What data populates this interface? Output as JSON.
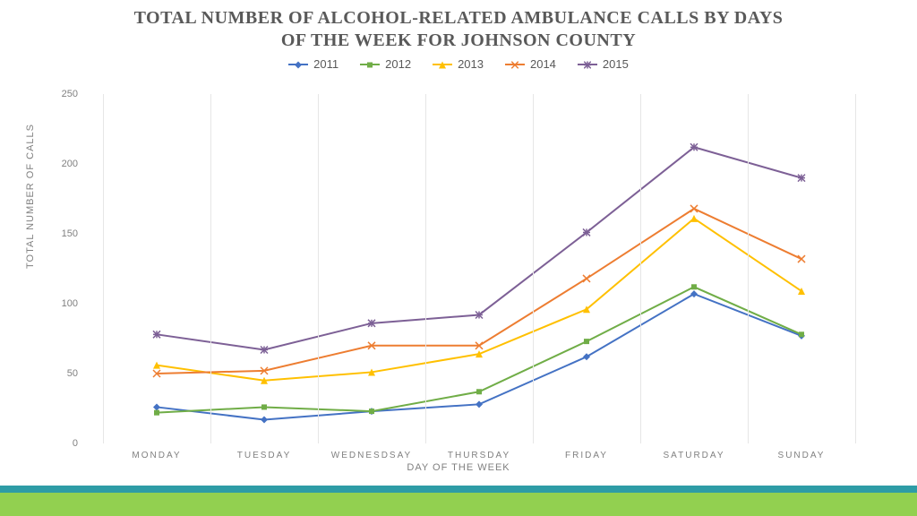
{
  "title_line1": "TOTAL NUMBER OF ALCOHOL-RELATED AMBULANCE CALLS BY DAYS",
  "title_line2": "OF THE WEEK FOR JOHNSON COUNTY",
  "title_fontsize": 20,
  "legend_fontsize": 13,
  "chart": {
    "type": "line",
    "categories": [
      "MONDAY",
      "TUESDAY",
      "WEDNESDSAY",
      "THURSDAY",
      "FRIDAY",
      "SATURDAY",
      "SUNDAY"
    ],
    "ylabel": "TOTAL NUMBER OF CALLS",
    "xlabel": "DAY OF THE WEEK",
    "ylim": [
      0,
      250
    ],
    "ytick_step": 50,
    "background_color": "#ffffff",
    "grid_color": "#e6e6e6",
    "series": [
      {
        "name": "2011",
        "color": "#4472c4",
        "marker": "diamond",
        "values": [
          26,
          17,
          23,
          28,
          62,
          107,
          77
        ]
      },
      {
        "name": "2012",
        "color": "#70ad47",
        "marker": "square",
        "values": [
          22,
          26,
          23,
          37,
          73,
          112,
          78
        ]
      },
      {
        "name": "2013",
        "color": "#ffc000",
        "marker": "triangle",
        "values": [
          56,
          45,
          51,
          64,
          96,
          161,
          109
        ]
      },
      {
        "name": "2014",
        "color": "#ed7d31",
        "marker": "x",
        "values": [
          50,
          52,
          70,
          70,
          118,
          168,
          132
        ]
      },
      {
        "name": "2015",
        "color": "#7d6096",
        "marker": "star",
        "values": [
          78,
          67,
          86,
          92,
          151,
          212,
          190
        ]
      }
    ],
    "line_width": 2,
    "marker_size": 8
  },
  "footer": {
    "bar1_color": "#2e9ca6",
    "bar2_color": "#92d050"
  }
}
